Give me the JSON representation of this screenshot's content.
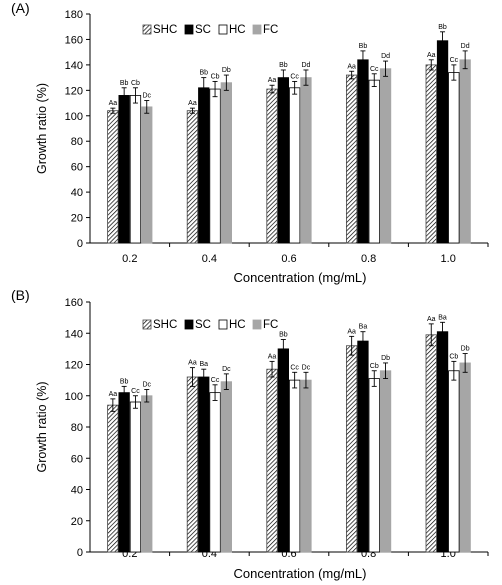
{
  "chart_data": [
    {
      "type": "bar",
      "panel_label": "(A)",
      "categories": [
        "0.2",
        "0.4",
        "0.6",
        "0.8",
        "1.0"
      ],
      "xlabel": "Concentration (mg/mL)",
      "ylabel": "Growth ratio (%)",
      "ylim": [
        0,
        180
      ],
      "yticks": [
        "0",
        "20",
        "40",
        "60",
        "80",
        "100",
        "120",
        "140",
        "160",
        "180"
      ],
      "grid": false,
      "legend_position": "top-left",
      "series": [
        {
          "name": "SHC",
          "values": [
            104,
            104,
            121,
            132,
            140
          ],
          "errors": [
            2,
            2,
            3,
            3,
            4
          ],
          "labels": [
            "Aa",
            "Aa",
            "Aa",
            "Aa",
            "Aa"
          ]
        },
        {
          "name": "SC",
          "values": [
            116,
            122,
            130,
            144,
            159
          ],
          "errors": [
            6,
            8,
            6,
            7,
            7
          ],
          "labels": [
            "Bb",
            "Bb",
            "Bb",
            "Bb",
            "Bb"
          ]
        },
        {
          "name": "HC",
          "values": [
            116,
            121,
            122,
            128,
            134
          ],
          "errors": [
            6,
            6,
            5,
            5,
            6
          ],
          "labels": [
            "Cb",
            "Cb",
            "Cc",
            "Cc",
            "Cc"
          ]
        },
        {
          "name": "FC",
          "values": [
            107,
            126,
            130,
            137,
            144
          ],
          "errors": [
            5,
            6,
            6,
            6,
            7
          ],
          "labels": [
            "Dc",
            "Db",
            "Dd",
            "Dd",
            "Dd"
          ]
        }
      ]
    },
    {
      "type": "bar",
      "panel_label": "(B)",
      "categories": [
        "0.2",
        "0.4",
        "0.6",
        "0.8",
        "1.0"
      ],
      "xlabel": "Concentration (mg/mL)",
      "ylabel": "Growth ratio (%)",
      "ylim": [
        0,
        160
      ],
      "yticks": [
        "0",
        "20",
        "40",
        "60",
        "80",
        "100",
        "120",
        "140",
        "160"
      ],
      "grid": false,
      "legend_position": "top-left",
      "series": [
        {
          "name": "SHC",
          "values": [
            94,
            112,
            117,
            132,
            139
          ],
          "errors": [
            4,
            6,
            5,
            6,
            7
          ],
          "labels": [
            "Aa",
            "Aa",
            "Aa",
            "Aa",
            "Aa"
          ]
        },
        {
          "name": "SC",
          "values": [
            102,
            112,
            130,
            135,
            141
          ],
          "errors": [
            4,
            5,
            6,
            6,
            6
          ],
          "labels": [
            "Bb",
            "Ba",
            "Bb",
            "Ba",
            "Ba"
          ]
        },
        {
          "name": "HC",
          "values": [
            96,
            102,
            110,
            111,
            116
          ],
          "errors": [
            4,
            5,
            5,
            5,
            6
          ],
          "labels": [
            "Cc",
            "Cc",
            "Cc",
            "Cb",
            "Cb"
          ]
        },
        {
          "name": "FC",
          "values": [
            100,
            109,
            110,
            116,
            121
          ],
          "errors": [
            4,
            5,
            5,
            5,
            6
          ],
          "labels": [
            "Dc",
            "Dc",
            "Dc",
            "Db",
            "Db"
          ]
        }
      ]
    }
  ],
  "colors": {
    "SHC": "#ffffff",
    "SC": "#000000",
    "HC": "#ffffff",
    "FC": "#a6a6a6",
    "axis": "#000000"
  }
}
